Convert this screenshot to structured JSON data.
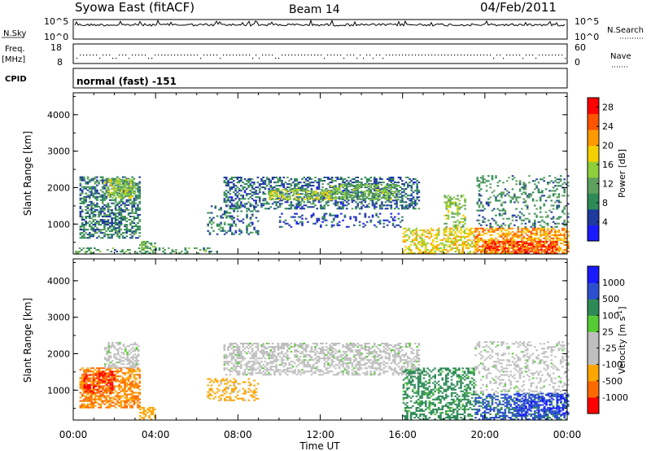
{
  "header": {
    "station": "Syowa East (fitACF)",
    "beam": "Beam 14",
    "date": "04/Feb/2011"
  },
  "strips": {
    "nsky": {
      "label": "N.Sky",
      "ticks": [
        "10^5",
        "10^0"
      ],
      "right_label": "N.Search",
      "right_ticks": [
        "10^5",
        "10^0"
      ]
    },
    "freq": {
      "label_line1": "Freq.",
      "label_line2": "[MHz]",
      "ticks": [
        "18",
        "8"
      ],
      "right_label": "Nave",
      "right_ticks": [
        "60",
        "0"
      ]
    },
    "cpid": {
      "label": "CPID",
      "value": "normal (fast) -151"
    }
  },
  "colors": {
    "power": [
      "#1a1aff",
      "#1f3a9e",
      "#2e8b57",
      "#5fa05f",
      "#8fcf3a",
      "#f5d000",
      "#ff9900",
      "#ff5500",
      "#ff0000"
    ],
    "velocity": [
      "#ff0000",
      "#ff6a00",
      "#ffa500",
      "#bfbfbf",
      "#bfbfbf",
      "#55cc33",
      "#2e8b57",
      "#2c4fd0",
      "#1a1aff"
    ]
  },
  "chart_data": [
    {
      "type": "heatmap",
      "name": "power",
      "ylabel": "Slant Range [km]",
      "xlabel": "Time UT",
      "x_range_hours": [
        0,
        24
      ],
      "ylim": [
        180,
        4600
      ],
      "yticks": [
        "1000",
        "2000",
        "3000",
        "4000"
      ],
      "xticks": [
        "00:00",
        "04:00",
        "08:00",
        "12:00",
        "16:00",
        "20:00",
        "00:00"
      ],
      "colorbar": {
        "label": "Power [dB]",
        "ticks": [
          "4",
          "8",
          "12",
          "16",
          "20",
          "24",
          "28"
        ],
        "range": [
          0,
          30
        ]
      },
      "regions": [
        {
          "t": [
            0.3,
            3.2
          ],
          "r": [
            600,
            2300
          ],
          "level": 8,
          "density": 0.55
        },
        {
          "t": [
            1.5,
            3.0
          ],
          "r": [
            1700,
            2200
          ],
          "level": 14,
          "density": 0.6
        },
        {
          "t": [
            3.2,
            4.0
          ],
          "r": [
            180,
            500
          ],
          "level": 12,
          "density": 0.5
        },
        {
          "t": [
            0.0,
            7.0
          ],
          "r": [
            180,
            320
          ],
          "level": 10,
          "density": 0.25
        },
        {
          "t": [
            6.5,
            9.0
          ],
          "r": [
            700,
            1500
          ],
          "level": 7,
          "density": 0.25
        },
        {
          "t": [
            7.3,
            16.8
          ],
          "r": [
            1400,
            2300
          ],
          "level": 7,
          "density": 0.45
        },
        {
          "t": [
            9.5,
            12.5
          ],
          "r": [
            1650,
            1950
          ],
          "level": 15,
          "density": 0.55
        },
        {
          "t": [
            12.5,
            15.8
          ],
          "r": [
            1650,
            2100
          ],
          "level": 13,
          "density": 0.5
        },
        {
          "t": [
            10.0,
            16.0
          ],
          "r": [
            900,
            1300
          ],
          "level": 5,
          "density": 0.2
        },
        {
          "t": [
            16.0,
            19.5
          ],
          "r": [
            180,
            900
          ],
          "level": 18,
          "density": 0.5
        },
        {
          "t": [
            18.0,
            19.0
          ],
          "r": [
            900,
            1800
          ],
          "level": 14,
          "density": 0.35
        },
        {
          "t": [
            19.5,
            24.0
          ],
          "r": [
            180,
            900
          ],
          "level": 22,
          "density": 0.6
        },
        {
          "t": [
            20.0,
            23.5
          ],
          "r": [
            180,
            500
          ],
          "level": 26,
          "density": 0.55
        },
        {
          "t": [
            19.5,
            24.0
          ],
          "r": [
            900,
            2300
          ],
          "level": 9,
          "density": 0.22
        }
      ]
    },
    {
      "type": "heatmap",
      "name": "velocity",
      "ylabel": "Slant Range [km]",
      "xlabel": "Time UT",
      "x_range_hours": [
        0,
        24
      ],
      "ylim": [
        180,
        4600
      ],
      "yticks": [
        "1000",
        "2000",
        "3000",
        "4000"
      ],
      "xticks": [
        "00:00",
        "04:00",
        "08:00",
        "12:00",
        "16:00",
        "20:00",
        "00:00"
      ],
      "colorbar": {
        "label": "Velocity [m s^-1]",
        "ticks": [
          "1000",
          "500",
          "100",
          "25",
          "-25",
          "-100",
          "-500",
          "-1000"
        ]
      },
      "regions": [
        {
          "t": [
            0.3,
            3.2
          ],
          "r": [
            500,
            1600
          ],
          "vel": -500,
          "density": 0.6
        },
        {
          "t": [
            0.5,
            2.0
          ],
          "r": [
            900,
            1500
          ],
          "vel": -1000,
          "density": 0.5
        },
        {
          "t": [
            1.5,
            3.2
          ],
          "r": [
            1600,
            2300
          ],
          "vel": 0,
          "density": 0.45
        },
        {
          "t": [
            3.2,
            4.0
          ],
          "r": [
            180,
            500
          ],
          "vel": -300,
          "density": 0.5
        },
        {
          "t": [
            6.5,
            9.0
          ],
          "r": [
            700,
            1300
          ],
          "vel": -150,
          "density": 0.3
        },
        {
          "t": [
            7.3,
            16.8
          ],
          "r": [
            1400,
            2300
          ],
          "vel": 0,
          "density": 0.5
        },
        {
          "t": [
            16.0,
            19.5
          ],
          "r": [
            180,
            1600
          ],
          "vel": 150,
          "density": 0.45
        },
        {
          "t": [
            19.5,
            24.0
          ],
          "r": [
            180,
            900
          ],
          "vel": 600,
          "density": 0.55
        },
        {
          "t": [
            21.5,
            24.0
          ],
          "r": [
            300,
            900
          ],
          "vel": 1000,
          "density": 0.4
        },
        {
          "t": [
            19.5,
            24.0
          ],
          "r": [
            900,
            2300
          ],
          "vel": 0,
          "density": 0.25
        }
      ]
    }
  ]
}
